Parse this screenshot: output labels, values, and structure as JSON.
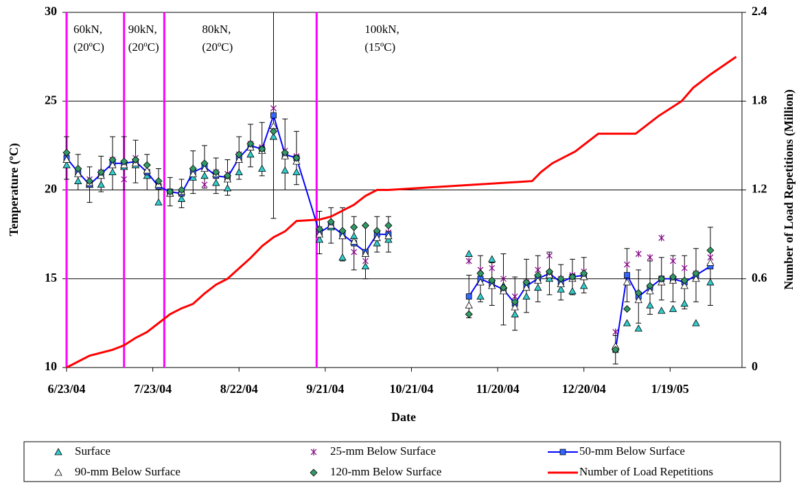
{
  "chart_data": {
    "type": "line",
    "xlabel": "Date",
    "ylabel": "Temperature (ºC)",
    "y2label": "Number of Load Repetitions (Million)",
    "xlim": [
      "6/23/04",
      "2/13/05"
    ],
    "xticks": [
      "6/23/04",
      "7/23/04",
      "8/22/04",
      "9/21/04",
      "10/21/04",
      "11/20/04",
      "12/20/04",
      "1/19/05"
    ],
    "ylim": [
      10,
      30
    ],
    "yticks": [
      10,
      15,
      20,
      25,
      30
    ],
    "y2lim": [
      0,
      2.4
    ],
    "y2ticks": [
      {
        "value": 0,
        "label": "0"
      },
      0.6,
      1.2,
      1.8,
      2.4
    ],
    "grid": true,
    "phases": [
      {
        "date": "6/23/04",
        "label": [
          "60kN,",
          "(20ºC)"
        ]
      },
      {
        "date": "7/13/04",
        "label": [
          "90kN,",
          "(20ºC)"
        ]
      },
      {
        "date": "7/27/04",
        "label": [
          "80kN,",
          "(20ºC)"
        ]
      },
      {
        "date": "9/18/04",
        "label": [
          "100kN,",
          "(15ºC)"
        ]
      }
    ],
    "x": [
      "6/23/04",
      "6/27/04",
      "7/1/04",
      "7/5/04",
      "7/9/04",
      "7/13/04",
      "7/17/04",
      "7/21/04",
      "7/25/04",
      "7/29/04",
      "8/2/04",
      "8/6/04",
      "8/10/04",
      "8/14/04",
      "8/18/04",
      "8/22/04",
      "8/26/04",
      "8/30/04",
      "9/3/04",
      "9/7/04",
      "9/11/04",
      "9/19/04",
      "9/23/04",
      "9/27/04",
      "10/1/04",
      "10/5/04",
      "10/9/04",
      "10/13/04",
      "11/10/04",
      "11/14/04",
      "11/18/04",
      "11/22/04",
      "11/26/04",
      "11/30/04",
      "12/4/04",
      "12/8/04",
      "12/12/04",
      "12/16/04",
      "12/20/04",
      "12/31/04",
      "1/4/05",
      "1/8/05",
      "1/12/05",
      "1/16/05",
      "1/20/05",
      "1/24/05",
      "1/28/05",
      "2/2/05"
    ],
    "series": [
      {
        "name": "Surface",
        "color": "#33cccc",
        "marker": "triangle",
        "values": [
          21.4,
          20.5,
          20.3,
          20.3,
          21.0,
          21.3,
          21.4,
          20.8,
          19.3,
          19.8,
          19.5,
          20.7,
          20.8,
          20.4,
          20.1,
          21.0,
          22.0,
          21.2,
          23.0,
          21.1,
          21.0,
          17.2,
          17.9,
          16.2,
          17.4,
          15.7,
          17.0,
          17.2,
          16.4,
          14.0,
          16.1,
          14.6,
          13.0,
          14.0,
          14.5,
          15.0,
          14.4,
          14.3,
          14.6,
          11.2,
          12.5,
          12.2,
          13.5,
          13.2,
          13.3,
          13.6,
          12.5,
          14.8
        ]
      },
      {
        "name": "25-mm Below Surface",
        "color": "#800080",
        "marker": "x",
        "values": [
          21.9,
          21.0,
          20.6,
          21.0,
          21.7,
          20.6,
          21.8,
          21.0,
          20.4,
          19.9,
          19.8,
          21.1,
          20.3,
          21.0,
          20.9,
          22.0,
          22.6,
          22.4,
          24.6,
          22.2,
          21.9,
          17.8,
          18.1,
          17.6,
          16.5,
          16.0,
          17.6,
          17.6,
          16.0,
          15.5,
          15.6,
          15.0,
          14.0,
          14.8,
          15.5,
          16.3,
          15.0,
          15.2,
          15.4,
          12.0,
          15.8,
          16.4,
          16.2,
          17.3,
          16.0,
          15.6,
          15.3,
          16.2
        ]
      },
      {
        "name": "50-mm Below Surface",
        "color": "#3366ff",
        "line_color": "#0000ff",
        "marker": "square",
        "line": true,
        "values": [
          21.8,
          21.0,
          20.3,
          20.9,
          21.5,
          21.5,
          21.6,
          21.0,
          20.2,
          19.9,
          19.8,
          21.0,
          21.3,
          20.8,
          20.7,
          21.8,
          22.5,
          22.3,
          24.2,
          22.0,
          21.8,
          17.6,
          18.0,
          17.5,
          17.0,
          16.5,
          17.5,
          17.5,
          14.0,
          15.0,
          14.7,
          14.4,
          13.6,
          14.6,
          15.0,
          15.3,
          14.8,
          15.1,
          15.2,
          11.0,
          15.2,
          14.0,
          14.5,
          15.0,
          15.0,
          14.8,
          15.2,
          15.7
        ],
        "errors": [
          1.2,
          1,
          1,
          1,
          1.5,
          1.5,
          1.2,
          1,
          1,
          0.8,
          0.8,
          1.2,
          1.2,
          1,
          1,
          1.2,
          1.2,
          1.5,
          5.8,
          2,
          1.5,
          1.2,
          1,
          1.5,
          1.5,
          1.5,
          1,
          1,
          1.2,
          1.3,
          1.2,
          2,
          1.5,
          1.5,
          1.3,
          1.2,
          1,
          1,
          1,
          0.8,
          1.5,
          1.5,
          1.5,
          1.2,
          1.3,
          1.5,
          1.5,
          2.2
        ]
      },
      {
        "name": "90-mm Below Surface",
        "color": "#ffffff",
        "marker": "triangle",
        "values": [
          21.7,
          20.9,
          20.4,
          20.8,
          21.4,
          21.4,
          21.5,
          21.1,
          20.3,
          19.8,
          19.9,
          20.9,
          21.2,
          20.9,
          20.6,
          21.7,
          22.4,
          22.2,
          23.6,
          21.9,
          21.6,
          17.5,
          18.0,
          17.4,
          17.1,
          16.4,
          17.3,
          17.4,
          13.5,
          14.8,
          14.6,
          14.3,
          13.4,
          14.5,
          14.9,
          15.2,
          14.7,
          15.0,
          15.1,
          11.2,
          14.8,
          13.8,
          14.3,
          14.8,
          14.9,
          14.6,
          15.0,
          15.9
        ]
      },
      {
        "name": "120-mm Below Surface",
        "color": "#339966",
        "marker": "diamond",
        "values": [
          22.1,
          21.2,
          20.5,
          21.0,
          21.7,
          21.6,
          21.7,
          21.4,
          20.5,
          19.9,
          20.0,
          21.2,
          21.5,
          21.0,
          20.8,
          22.0,
          22.6,
          22.3,
          23.3,
          22.1,
          21.8,
          17.8,
          18.2,
          17.7,
          17.9,
          18.0,
          17.7,
          18.0,
          13.0,
          15.3,
          14.9,
          14.5,
          13.7,
          14.8,
          15.2,
          15.4,
          15.0,
          15.1,
          15.3,
          11.0,
          13.3,
          14.2,
          14.6,
          15.0,
          15.1,
          14.9,
          15.3,
          16.6
        ]
      },
      {
        "name": "Number of Load Repetitions",
        "color": "#ff0000",
        "axis": "y2",
        "line": true,
        "x": [
          "6/23/04",
          "6/27/04",
          "7/1/04",
          "7/9/04",
          "7/13/04",
          "7/17/04",
          "7/21/04",
          "7/25/04",
          "7/29/04",
          "8/2/04",
          "8/6/04",
          "8/10/04",
          "8/14/04",
          "8/18/04",
          "8/22/04",
          "8/26/04",
          "8/30/04",
          "9/3/04",
          "9/7/04",
          "9/11/04",
          "9/19/04",
          "9/23/04",
          "9/27/04",
          "10/1/04",
          "10/5/04",
          "10/9/04",
          "10/13/04",
          "12/2/04",
          "12/5/04",
          "12/9/04",
          "12/17/04",
          "12/25/04",
          "1/7/05",
          "1/15/05",
          "1/23/05",
          "1/27/05",
          "2/2/05",
          "2/8/05",
          "2/11/05"
        ],
        "values": [
          0,
          0.04,
          0.08,
          0.12,
          0.15,
          0.2,
          0.24,
          0.3,
          0.36,
          0.4,
          0.43,
          0.5,
          0.56,
          0.6,
          0.67,
          0.74,
          0.82,
          0.88,
          0.92,
          0.99,
          1.0,
          1.02,
          1.06,
          1.1,
          1.16,
          1.2,
          1.2,
          1.26,
          1.32,
          1.38,
          1.46,
          1.58,
          1.58,
          1.7,
          1.8,
          1.89,
          1.98,
          2.06,
          2.1
        ]
      }
    ]
  }
}
